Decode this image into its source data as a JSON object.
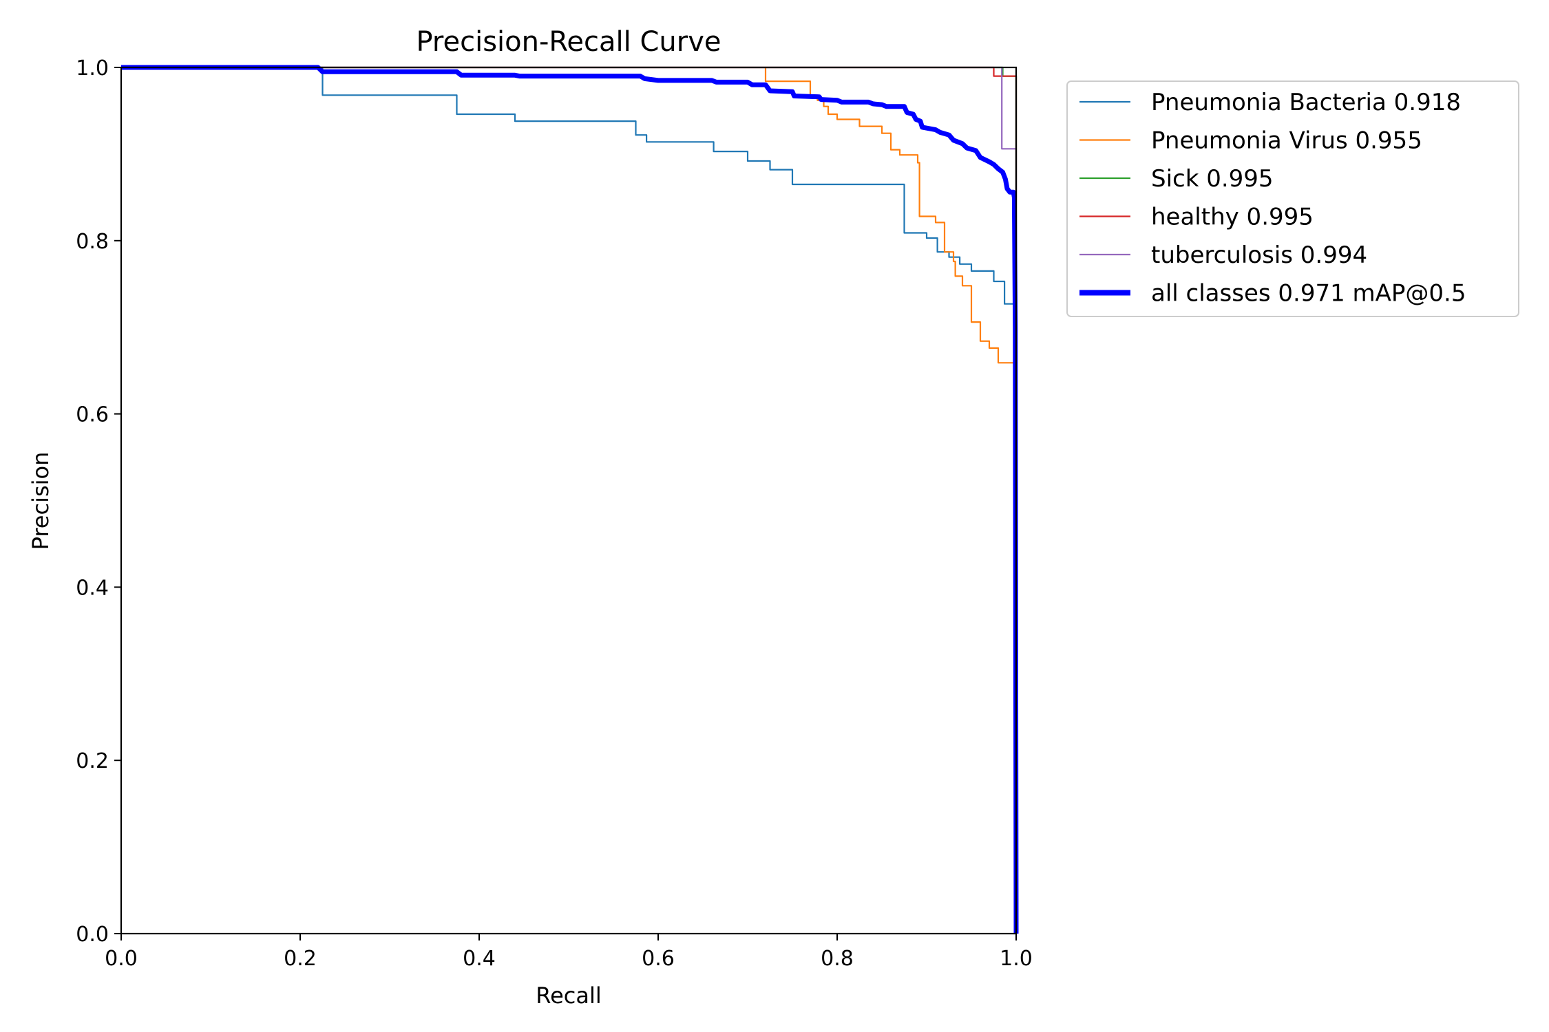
{
  "chart_data": {
    "type": "line",
    "title": "Precision-Recall Curve",
    "xlabel": "Recall",
    "ylabel": "Precision",
    "xlim": [
      0,
      1
    ],
    "ylim": [
      0,
      1
    ],
    "grid": false,
    "legend_position": "outside-top-right",
    "xticks": [
      "0.0",
      "0.2",
      "0.4",
      "0.6",
      "0.8",
      "1.0"
    ],
    "yticks": [
      "0.0",
      "0.2",
      "0.4",
      "0.6",
      "0.8",
      "1.0"
    ],
    "series": [
      {
        "name": "Pneumonia Bacteria 0.918",
        "color": "#1f77b4",
        "emphasis": "thin",
        "points": [
          [
            0,
            1.0
          ],
          [
            0.225,
            1.0
          ],
          [
            0.225,
            0.968
          ],
          [
            0.375,
            0.968
          ],
          [
            0.375,
            0.946
          ],
          [
            0.44,
            0.946
          ],
          [
            0.44,
            0.938
          ],
          [
            0.575,
            0.938
          ],
          [
            0.575,
            0.922
          ],
          [
            0.587,
            0.922
          ],
          [
            0.587,
            0.914
          ],
          [
            0.662,
            0.914
          ],
          [
            0.662,
            0.903
          ],
          [
            0.7,
            0.903
          ],
          [
            0.7,
            0.892
          ],
          [
            0.725,
            0.892
          ],
          [
            0.725,
            0.882
          ],
          [
            0.75,
            0.882
          ],
          [
            0.75,
            0.865
          ],
          [
            0.875,
            0.865
          ],
          [
            0.875,
            0.809
          ],
          [
            0.9,
            0.809
          ],
          [
            0.9,
            0.803
          ],
          [
            0.912,
            0.803
          ],
          [
            0.912,
            0.787
          ],
          [
            0.925,
            0.787
          ],
          [
            0.925,
            0.781
          ],
          [
            0.937,
            0.781
          ],
          [
            0.937,
            0.773
          ],
          [
            0.95,
            0.773
          ],
          [
            0.95,
            0.765
          ],
          [
            0.975,
            0.765
          ],
          [
            0.975,
            0.753
          ],
          [
            0.987,
            0.753
          ],
          [
            0.987,
            0.727
          ],
          [
            1.0,
            0.727
          ],
          [
            1.0,
            0.0
          ]
        ]
      },
      {
        "name": "Pneumonia Virus 0.955",
        "color": "#ff7f0e",
        "emphasis": "thin",
        "points": [
          [
            0.72,
            1.0
          ],
          [
            0.72,
            0.984
          ],
          [
            0.77,
            0.984
          ],
          [
            0.77,
            0.968
          ],
          [
            0.778,
            0.968
          ],
          [
            0.778,
            0.962
          ],
          [
            0.785,
            0.962
          ],
          [
            0.785,
            0.955
          ],
          [
            0.79,
            0.955
          ],
          [
            0.79,
            0.946
          ],
          [
            0.8,
            0.946
          ],
          [
            0.8,
            0.94
          ],
          [
            0.825,
            0.94
          ],
          [
            0.825,
            0.932
          ],
          [
            0.85,
            0.932
          ],
          [
            0.85,
            0.924
          ],
          [
            0.86,
            0.924
          ],
          [
            0.86,
            0.905
          ],
          [
            0.87,
            0.905
          ],
          [
            0.87,
            0.899
          ],
          [
            0.89,
            0.899
          ],
          [
            0.89,
            0.89
          ],
          [
            0.892,
            0.89
          ],
          [
            0.892,
            0.828
          ],
          [
            0.91,
            0.828
          ],
          [
            0.91,
            0.821
          ],
          [
            0.92,
            0.821
          ],
          [
            0.92,
            0.787
          ],
          [
            0.93,
            0.787
          ],
          [
            0.93,
            0.776
          ],
          [
            0.932,
            0.776
          ],
          [
            0.932,
            0.759
          ],
          [
            0.94,
            0.759
          ],
          [
            0.94,
            0.748
          ],
          [
            0.95,
            0.748
          ],
          [
            0.95,
            0.706
          ],
          [
            0.96,
            0.706
          ],
          [
            0.96,
            0.684
          ],
          [
            0.97,
            0.684
          ],
          [
            0.97,
            0.676
          ],
          [
            0.98,
            0.676
          ],
          [
            0.98,
            0.659
          ],
          [
            1.0,
            0.659
          ],
          [
            1.0,
            0.0
          ]
        ]
      },
      {
        "name": "Sick 0.995",
        "color": "#2ca02c",
        "emphasis": "thin",
        "points": [
          [
            0,
            1.0
          ],
          [
            0.985,
            1.0
          ],
          [
            0.985,
            0.99
          ],
          [
            1.0,
            0.99
          ],
          [
            1.0,
            0.0
          ]
        ]
      },
      {
        "name": "healthy 0.995",
        "color": "#d62728",
        "emphasis": "thin",
        "points": [
          [
            0,
            1.0
          ],
          [
            0.975,
            1.0
          ],
          [
            0.975,
            0.99
          ],
          [
            0.988,
            0.99
          ],
          [
            0.988,
            0.99
          ],
          [
            1.0,
            0.99
          ],
          [
            1.0,
            0.0
          ]
        ]
      },
      {
        "name": "tuberculosis 0.994",
        "color": "#9467bd",
        "emphasis": "thin",
        "points": [
          [
            0,
            1.0
          ],
          [
            0.984,
            1.0
          ],
          [
            0.984,
            0.906
          ],
          [
            1.0,
            0.906
          ],
          [
            1.0,
            0.0
          ]
        ]
      },
      {
        "name": "all classes 0.971 mAP@0.5",
        "color": "#0000ff",
        "emphasis": "thick",
        "points": [
          [
            0,
            1.0
          ],
          [
            0.22,
            1.0
          ],
          [
            0.225,
            0.995
          ],
          [
            0.375,
            0.995
          ],
          [
            0.38,
            0.991
          ],
          [
            0.44,
            0.991
          ],
          [
            0.445,
            0.99
          ],
          [
            0.58,
            0.99
          ],
          [
            0.585,
            0.987
          ],
          [
            0.6,
            0.985
          ],
          [
            0.66,
            0.985
          ],
          [
            0.665,
            0.983
          ],
          [
            0.7,
            0.983
          ],
          [
            0.705,
            0.98
          ],
          [
            0.72,
            0.98
          ],
          [
            0.725,
            0.973
          ],
          [
            0.75,
            0.972
          ],
          [
            0.752,
            0.967
          ],
          [
            0.78,
            0.966
          ],
          [
            0.782,
            0.963
          ],
          [
            0.8,
            0.962
          ],
          [
            0.805,
            0.96
          ],
          [
            0.835,
            0.96
          ],
          [
            0.84,
            0.958
          ],
          [
            0.85,
            0.957
          ],
          [
            0.855,
            0.955
          ],
          [
            0.875,
            0.955
          ],
          [
            0.878,
            0.948
          ],
          [
            0.885,
            0.946
          ],
          [
            0.888,
            0.94
          ],
          [
            0.893,
            0.938
          ],
          [
            0.895,
            0.931
          ],
          [
            0.91,
            0.928
          ],
          [
            0.915,
            0.925
          ],
          [
            0.925,
            0.922
          ],
          [
            0.93,
            0.916
          ],
          [
            0.94,
            0.912
          ],
          [
            0.945,
            0.907
          ],
          [
            0.955,
            0.904
          ],
          [
            0.96,
            0.896
          ],
          [
            0.97,
            0.891
          ],
          [
            0.975,
            0.888
          ],
          [
            0.98,
            0.883
          ],
          [
            0.985,
            0.879
          ],
          [
            0.988,
            0.871
          ],
          [
            0.99,
            0.86
          ],
          [
            0.993,
            0.856
          ],
          [
            0.997,
            0.856
          ],
          [
            0.998,
            0.85
          ],
          [
            0.999,
            0.7
          ],
          [
            1.0,
            0.0
          ]
        ]
      }
    ]
  }
}
